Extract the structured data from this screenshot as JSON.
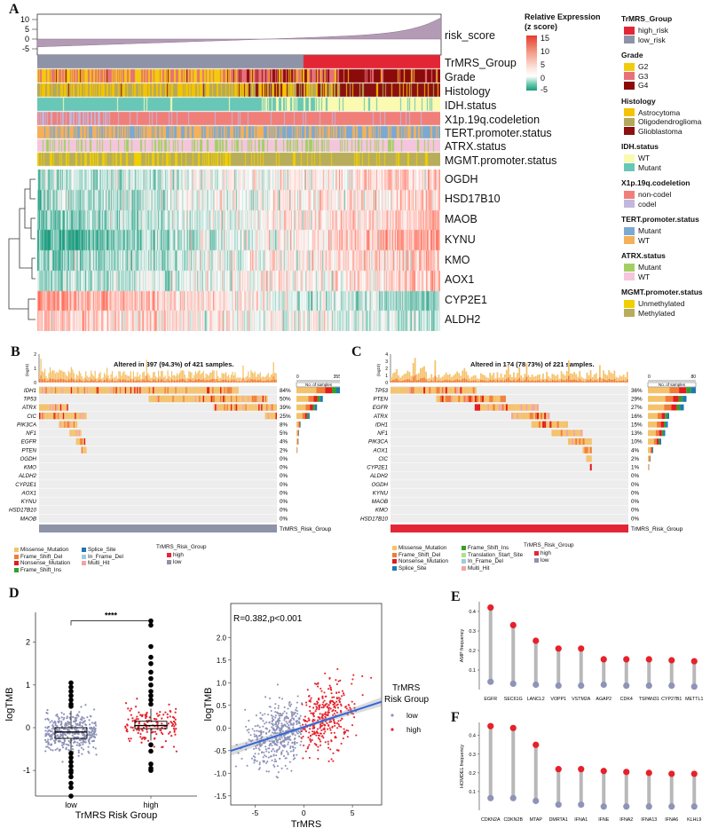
{
  "panel_a": {
    "letter": "A",
    "risk_axis_ticks": [
      "10",
      "5",
      "0",
      "-5"
    ],
    "row_labels": [
      "risk_score",
      "TrMRS_Group",
      "Grade",
      "Histology",
      "IDH.status",
      "X1p.19q.codeletion",
      "TERT.promoter.status",
      "ATRX.status",
      "MGMT.promoter.status"
    ],
    "gene_labels": [
      "OGDH",
      "HSD17B10",
      "MAOB",
      "KYNU",
      "KMO",
      "AOX1",
      "CYP2E1",
      "ALDH2"
    ],
    "colorbar": {
      "title_line1": "Relative Expression",
      "title_line2": "(z score)",
      "ticks": [
        "15",
        "10",
        "5",
        "0",
        "-5"
      ]
    },
    "legends": [
      {
        "title": "TrMRS_Group",
        "items": [
          {
            "label": "high_risk",
            "color": "#e32636"
          },
          {
            "label": "low_risk",
            "color": "#8f93a8"
          }
        ]
      },
      {
        "title": "Grade",
        "items": [
          {
            "label": "G2",
            "color": "#f2cc0c"
          },
          {
            "label": "G3",
            "color": "#e8707a"
          },
          {
            "label": "G4",
            "color": "#8b0a0a"
          }
        ]
      },
      {
        "title": "Histology",
        "items": [
          {
            "label": "Astrocytoma",
            "color": "#f5c400"
          },
          {
            "label": "Oligodendroglioma",
            "color": "#b5a85a"
          },
          {
            "label": "Glioblastoma",
            "color": "#8b1010"
          }
        ]
      },
      {
        "title": "IDH.status",
        "items": [
          {
            "label": "WT",
            "color": "#fafab0"
          },
          {
            "label": "Mutant",
            "color": "#68c7b7"
          }
        ]
      },
      {
        "title": "X1p.19q.codeletion",
        "items": [
          {
            "label": "non-codel",
            "color": "#f07f7a"
          },
          {
            "label": "codel",
            "color": "#c2b8dd"
          }
        ]
      },
      {
        "title": "TERT.promoter.status",
        "items": [
          {
            "label": "Mutant",
            "color": "#7ba9d3"
          },
          {
            "label": "WT",
            "color": "#f5b05a"
          }
        ]
      },
      {
        "title": "ATRX.status",
        "items": [
          {
            "label": "Mutant",
            "color": "#a3cf62"
          },
          {
            "label": "WT",
            "color": "#f4c6dd"
          }
        ]
      },
      {
        "title": "MGMT.promoter.status",
        "items": [
          {
            "label": "Unmethylated",
            "color": "#f0cf00"
          },
          {
            "label": "Methylated",
            "color": "#b8ad5a"
          }
        ]
      }
    ]
  },
  "panel_b": {
    "letter": "B",
    "title": "Altered in 397 (94.3%) of 421 samples.",
    "tmb_label": "(log10)",
    "tmb_ticks": [
      "2",
      "1",
      "0"
    ],
    "side_axis": {
      "min": "0",
      "max": "355",
      "label": "No. of samples"
    },
    "genes": [
      {
        "name": "IDH1",
        "pct": "84%",
        "value": 84
      },
      {
        "name": "TP53",
        "pct": "50%",
        "value": 50
      },
      {
        "name": "ATRX",
        "pct": "39%",
        "value": 39
      },
      {
        "name": "CIC",
        "pct": "25%",
        "value": 25
      },
      {
        "name": "PIK3CA",
        "pct": "8%",
        "value": 8
      },
      {
        "name": "NF1",
        "pct": "5%",
        "value": 5
      },
      {
        "name": "EGFR",
        "pct": "4%",
        "value": 4
      },
      {
        "name": "PTEN",
        "pct": "2%",
        "value": 2
      },
      {
        "name": "OGDH",
        "pct": "0%",
        "value": 0
      },
      {
        "name": "KMO",
        "pct": "0%",
        "value": 0
      },
      {
        "name": "ALDH2",
        "pct": "0%",
        "value": 0
      },
      {
        "name": "CYP2E1",
        "pct": "0%",
        "value": 0
      },
      {
        "name": "AOX1",
        "pct": "0%",
        "value": 0
      },
      {
        "name": "KYNU",
        "pct": "0%",
        "value": 0
      },
      {
        "name": "HSD17B10",
        "pct": "0%",
        "value": 0
      },
      {
        "name": "MAOB",
        "pct": "0%",
        "value": 0
      }
    ],
    "group_bar_label": "TrMRS_Risk_Group",
    "legend_variants": [
      {
        "label": "Missense_Mutation",
        "color": "#f5c26b"
      },
      {
        "label": "Splice_Site",
        "color": "#1f78b4"
      },
      {
        "label": "Frame_Shift_Del",
        "color": "#f27c35"
      },
      {
        "label": "In_Frame_Del",
        "color": "#9ecae1"
      },
      {
        "label": "Nonsense_Mutation",
        "color": "#e41a1c"
      },
      {
        "label": "Multi_Hit",
        "color": "#f4a3a3"
      },
      {
        "label": "Frame_Shift_Ins",
        "color": "#33a02c"
      }
    ],
    "legend_group": {
      "title": "TrMRS_Risk_Group",
      "items": [
        {
          "label": "high",
          "color": "#e32636"
        },
        {
          "label": "low",
          "color": "#8f93a8"
        }
      ]
    }
  },
  "panel_c": {
    "letter": "C",
    "title": "Altered in 174 (78.73%) of 221 samples.",
    "tmb_label": "(log10)",
    "tmb_ticks": [
      "4",
      "3",
      "2",
      "1",
      "0"
    ],
    "side_axis": {
      "min": "0",
      "max": "80",
      "label": "No. of samples"
    },
    "genes": [
      {
        "name": "TP53",
        "pct": "36%",
        "value": 36
      },
      {
        "name": "PTEN",
        "pct": "29%",
        "value": 29
      },
      {
        "name": "EGFR",
        "pct": "27%",
        "value": 27
      },
      {
        "name": "ATRX",
        "pct": "16%",
        "value": 16
      },
      {
        "name": "IDH1",
        "pct": "15%",
        "value": 15
      },
      {
        "name": "NF1",
        "pct": "13%",
        "value": 13
      },
      {
        "name": "PIK3CA",
        "pct": "10%",
        "value": 10
      },
      {
        "name": "AOX1",
        "pct": "4%",
        "value": 4
      },
      {
        "name": "CIC",
        "pct": "2%",
        "value": 2
      },
      {
        "name": "CYP2E1",
        "pct": "1%",
        "value": 1
      },
      {
        "name": "ALDH2",
        "pct": "0%",
        "value": 0
      },
      {
        "name": "OGDH",
        "pct": "0%",
        "value": 0
      },
      {
        "name": "KYNU",
        "pct": "0%",
        "value": 0
      },
      {
        "name": "MAOB",
        "pct": "0%",
        "value": 0
      },
      {
        "name": "KMO",
        "pct": "0%",
        "value": 0
      },
      {
        "name": "HSD17B10",
        "pct": "0%",
        "value": 0
      }
    ],
    "group_bar_label": "TrMRS_Risk_Group",
    "legend_variants": [
      {
        "label": "Missense_Mutation",
        "color": "#f5c26b"
      },
      {
        "label": "Frame_Shift_Ins",
        "color": "#33a02c"
      },
      {
        "label": "Frame_Shift_Del",
        "color": "#f27c35"
      },
      {
        "label": "Translation_Start_Site",
        "color": "#b2df8a"
      },
      {
        "label": "Nonsense_Mutation",
        "color": "#e41a1c"
      },
      {
        "label": "In_Frame_Del",
        "color": "#9ecae1"
      },
      {
        "label": "Splice_Site",
        "color": "#1f78b4"
      },
      {
        "label": "Multi_Hit",
        "color": "#f4a3a3"
      }
    ],
    "legend_group": {
      "title": "TrMRS_Risk_Group",
      "items": [
        {
          "label": "high",
          "color": "#e32636"
        },
        {
          "label": "low",
          "color": "#8f93a8"
        }
      ]
    }
  },
  "panel_d": {
    "letter": "D"
  },
  "panel_e": {
    "letter": "E"
  },
  "panel_f": {
    "letter": "F"
  },
  "chart_data": [
    {
      "type": "box",
      "title": "",
      "xlabel": "TrMRS Risk Group",
      "ylabel": "logTMB",
      "categories": [
        "low",
        "high"
      ],
      "ylim": [
        -1.6,
        2.7
      ],
      "yticks": [
        "2",
        "1",
        "0",
        "-1"
      ],
      "significance": "****",
      "boxes": [
        {
          "name": "low",
          "q1": -0.25,
          "median": -0.1,
          "q3": 0.0,
          "whisker_low": -0.55,
          "whisker_high": 0.4
        },
        {
          "name": "high",
          "q1": -0.02,
          "median": 0.05,
          "q3": 0.15,
          "whisker_low": -0.3,
          "whisker_high": 0.45
        }
      ],
      "outliers": {
        "low": [
          1.05,
          0.95,
          0.85,
          0.75,
          0.65,
          0.55,
          0.5,
          -0.6,
          -0.7,
          -0.8,
          -0.9,
          -1.0,
          -1.05,
          -1.15,
          -1.3,
          -1.4,
          -1.6
        ],
        "high": [
          2.5,
          2.4,
          1.9,
          1.65,
          1.5,
          1.3,
          1.15,
          1.0,
          0.85,
          0.75,
          0.65,
          0.55,
          -0.4,
          -0.55,
          -0.85,
          -0.95,
          -1.0
        ]
      }
    },
    {
      "type": "scatter",
      "title": "R=0.382,p<0.001",
      "xlabel": "TrMRS",
      "ylabel": "logTMB",
      "xlim": [
        -7.5,
        8
      ],
      "ylim": [
        -1.7,
        2.75
      ],
      "xticks": [
        "-5",
        "0",
        "5"
      ],
      "yticks": [
        "2.0",
        "1.5",
        "1.0",
        "0.5",
        "0.0",
        "-0.5",
        "-1.0",
        "-1.5"
      ],
      "legend": {
        "title_line1": "TrMRS",
        "title_line2": "Risk Group",
        "items": [
          {
            "label": "low",
            "color": "#8f93b8"
          },
          {
            "label": "high",
            "color": "#e8202a"
          }
        ]
      },
      "regression": {
        "intercept": 0.02,
        "slope": 0.07,
        "x_range": [
          -7.5,
          8
        ]
      }
    },
    {
      "type": "lollipop",
      "ylabel": "AMP frequency",
      "ylim": [
        0,
        0.45
      ],
      "yticks": [
        "0.4",
        "0.3",
        "0.2",
        "0.1"
      ],
      "categories": [
        "EGFR",
        "SEC61G",
        "LANCL2",
        "VOPP1",
        "VSTM2A",
        "AGAP2",
        "CDK4",
        "TSPAN31",
        "CYP27B1",
        "METTL1"
      ],
      "series": [
        {
          "name": "high",
          "color": "#e8202a",
          "values": [
            0.42,
            0.33,
            0.25,
            0.21,
            0.21,
            0.155,
            0.155,
            0.155,
            0.15,
            0.145
          ]
        },
        {
          "name": "low",
          "color": "#8f93b8",
          "values": [
            0.04,
            0.03,
            0.025,
            0.02,
            0.02,
            0.025,
            0.02,
            0.02,
            0.02,
            0.015
          ]
        }
      ]
    },
    {
      "type": "lollipop",
      "ylabel": "HOMDEL frequency",
      "ylim": [
        0,
        0.47
      ],
      "yticks": [
        "0.4",
        "0.3",
        "0.2",
        "0.1"
      ],
      "categories": [
        "CDKN2A",
        "CDKN2B",
        "MTAP",
        "DMRTA1",
        "IFNA1",
        "IFNE",
        "IFNA2",
        "IFNA13",
        "IFNA6",
        "KLHL9"
      ],
      "series": [
        {
          "name": "high",
          "color": "#e8202a",
          "values": [
            0.45,
            0.44,
            0.35,
            0.22,
            0.22,
            0.21,
            0.205,
            0.2,
            0.195,
            0.195
          ]
        },
        {
          "name": "low",
          "color": "#8f93b8",
          "values": [
            0.065,
            0.065,
            0.05,
            0.03,
            0.03,
            0.02,
            0.02,
            0.02,
            0.02,
            0.02
          ]
        }
      ]
    }
  ]
}
